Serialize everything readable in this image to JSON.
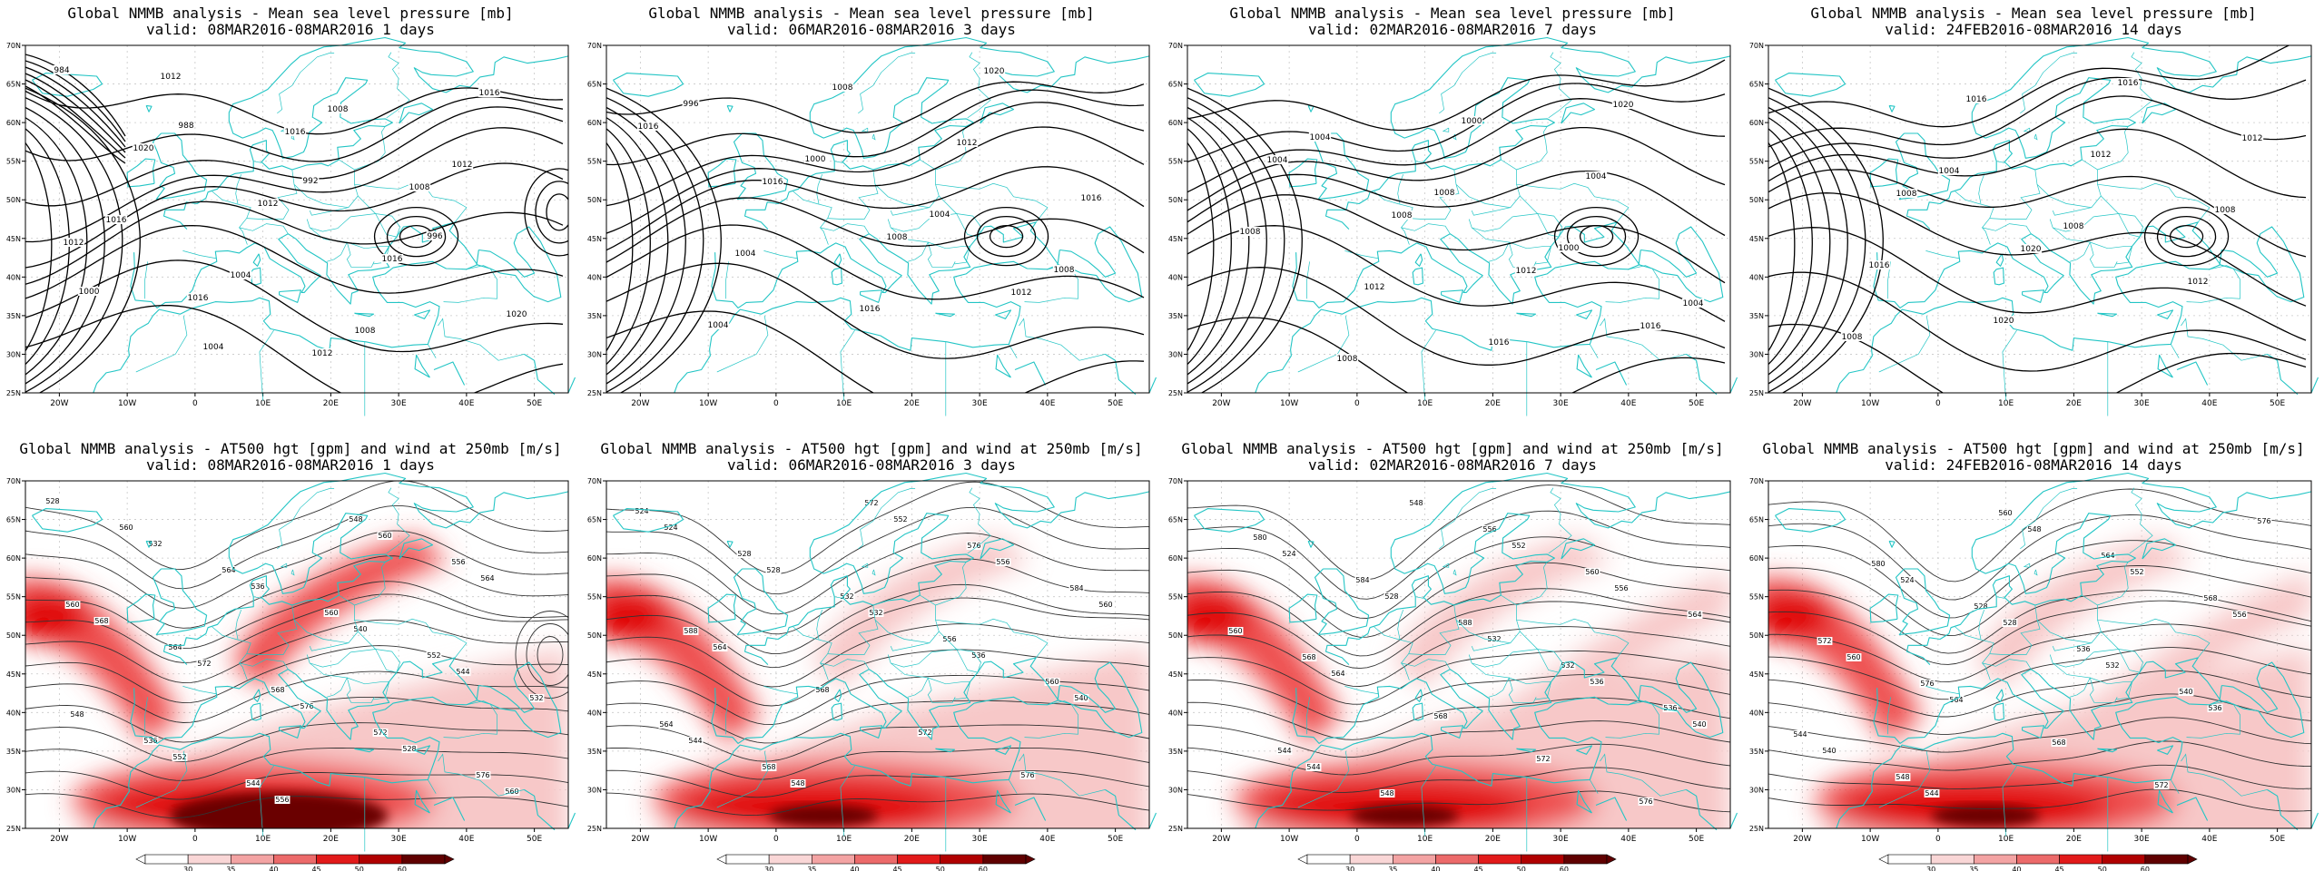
{
  "figure": {
    "row1_title": "Global NMMB analysis - Mean sea level pressure [mb]",
    "row2_title": "Global NMMB analysis - AT500 hgt [gpm] and wind at 250mb [m/s]"
  },
  "colors": {
    "coast": "#23c5c5",
    "contour": "#000000",
    "wind_light": "#f7c8c8",
    "wind_mid": "#ee5050",
    "wind_strong": "#e00000",
    "wind_dark": "#6a0000"
  },
  "axes": {
    "x_ticks": [
      "20W",
      "10W",
      "0",
      "10E",
      "20E",
      "30E",
      "40E",
      "50E"
    ],
    "y_ticks": [
      "70N",
      "65N",
      "60N",
      "55N",
      "50N",
      "45N",
      "40N",
      "35N",
      "30N",
      "25N"
    ]
  },
  "colorbar": {
    "ticks": [
      "30",
      "35",
      "40",
      "45",
      "50",
      "60"
    ],
    "colors": [
      "#ffffff",
      "#f9d6d6",
      "#f3a3a3",
      "#ec6a6a",
      "#e21a1a",
      "#b00000",
      "#600000"
    ]
  },
  "panels": [
    {
      "valid": "valid: 08MAR2016-08MAR2016  1 days",
      "mslp_labels": [
        "984",
        "988",
        "992",
        "996",
        "1000",
        "1004",
        "1008",
        "1012",
        "1016",
        "1004",
        "1008",
        "1016",
        "1020",
        "1012",
        "1016",
        "1020",
        "1012",
        "1016",
        "1008",
        "1012",
        "1016",
        "1012"
      ],
      "hgt_labels": [
        "528",
        "532",
        "536",
        "540",
        "544",
        "548",
        "552",
        "556",
        "560",
        "564",
        "568",
        "572",
        "576",
        "528",
        "560",
        "560",
        "564",
        "560",
        "552",
        "532",
        "536",
        "544",
        "548",
        "556",
        "560",
        "564",
        "568",
        "572",
        "576"
      ]
    },
    {
      "valid": "valid: 06MAR2016-08MAR2016  3 days",
      "mslp_labels": [
        "996",
        "1000",
        "1004",
        "1008",
        "1004",
        "1008",
        "1012",
        "1016",
        "1004",
        "1016",
        "1020",
        "1016",
        "1016",
        "1008",
        "1012"
      ],
      "hgt_labels": [
        "524",
        "528",
        "532",
        "536",
        "540",
        "544",
        "548",
        "552",
        "556",
        "560",
        "564",
        "568",
        "572",
        "576",
        "524",
        "528",
        "532",
        "556",
        "560",
        "564",
        "568",
        "572",
        "576",
        "584",
        "588"
      ]
    },
    {
      "valid": "valid: 02MAR2016-08MAR2016  7 days",
      "mslp_labels": [
        "1004",
        "1008",
        "1000",
        "1004",
        "1008",
        "1000",
        "1004",
        "1008",
        "1012",
        "1016",
        "1020",
        "1004",
        "1008",
        "1012",
        "1016"
      ],
      "hgt_labels": [
        "524",
        "528",
        "532",
        "536",
        "540",
        "544",
        "548",
        "552",
        "556",
        "560",
        "564",
        "568",
        "572",
        "576",
        "580",
        "584",
        "588",
        "532",
        "536",
        "544",
        "548",
        "556",
        "560",
        "564",
        "568"
      ]
    },
    {
      "valid": "valid: 24FEB2016-08MAR2016  14 days",
      "mslp_labels": [
        "1004",
        "1008",
        "1012",
        "1008",
        "1016",
        "1012",
        "1008",
        "1016",
        "1020",
        "1016",
        "1012",
        "1008",
        "1020"
      ],
      "hgt_labels": [
        "524",
        "528",
        "532",
        "536",
        "540",
        "544",
        "548",
        "552",
        "556",
        "560",
        "564",
        "568",
        "572",
        "576",
        "580",
        "528",
        "536",
        "540",
        "544",
        "548",
        "560",
        "564",
        "568",
        "572",
        "576"
      ]
    }
  ]
}
